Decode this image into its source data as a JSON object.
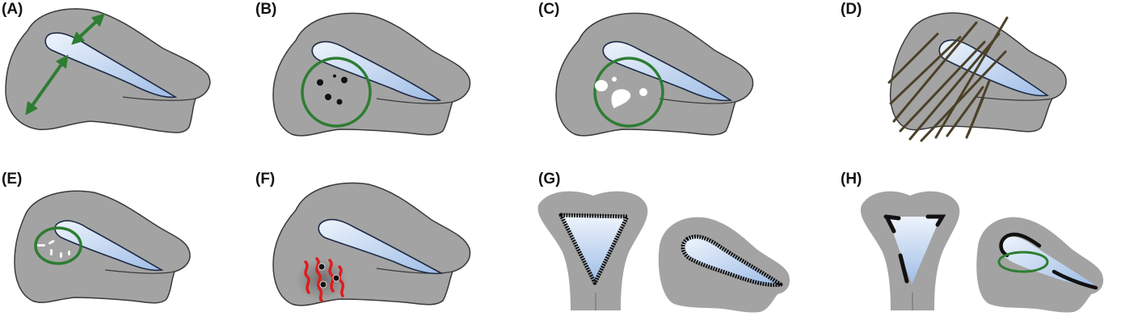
{
  "colors": {
    "uterus_fill": "#a3a3a3",
    "uterus_stroke": "#3a3a3a",
    "cavity_light": "#eef4fc",
    "cavity_dark": "#9fbde6",
    "green_marker": "#2e7d32",
    "thread_color": "#4b4128",
    "red_vessel": "#e01c1c",
    "scar_black": "#111111"
  },
  "panels": [
    {
      "id": "A",
      "label": "(A)",
      "features": [
        "wall-thickness-arrows"
      ]
    },
    {
      "id": "B",
      "label": "(B)",
      "features": [
        "green-circle",
        "dark-foci"
      ]
    },
    {
      "id": "C",
      "label": "(C)",
      "features": [
        "green-circle",
        "white-cysts"
      ]
    },
    {
      "id": "D",
      "label": "(D)",
      "features": [
        "streaky-shadows"
      ]
    },
    {
      "id": "E",
      "label": "(E)",
      "features": [
        "green-circle",
        "white-specks"
      ]
    },
    {
      "id": "F",
      "label": "(F)",
      "features": [
        "red-vessels",
        "dark-foci"
      ]
    },
    {
      "id": "G",
      "label": "(G)",
      "features": [
        "coronal-view",
        "irregular-border"
      ]
    },
    {
      "id": "H",
      "label": "(H)",
      "features": [
        "coronal-view",
        "interrupted-border",
        "green-ellipse"
      ]
    }
  ]
}
